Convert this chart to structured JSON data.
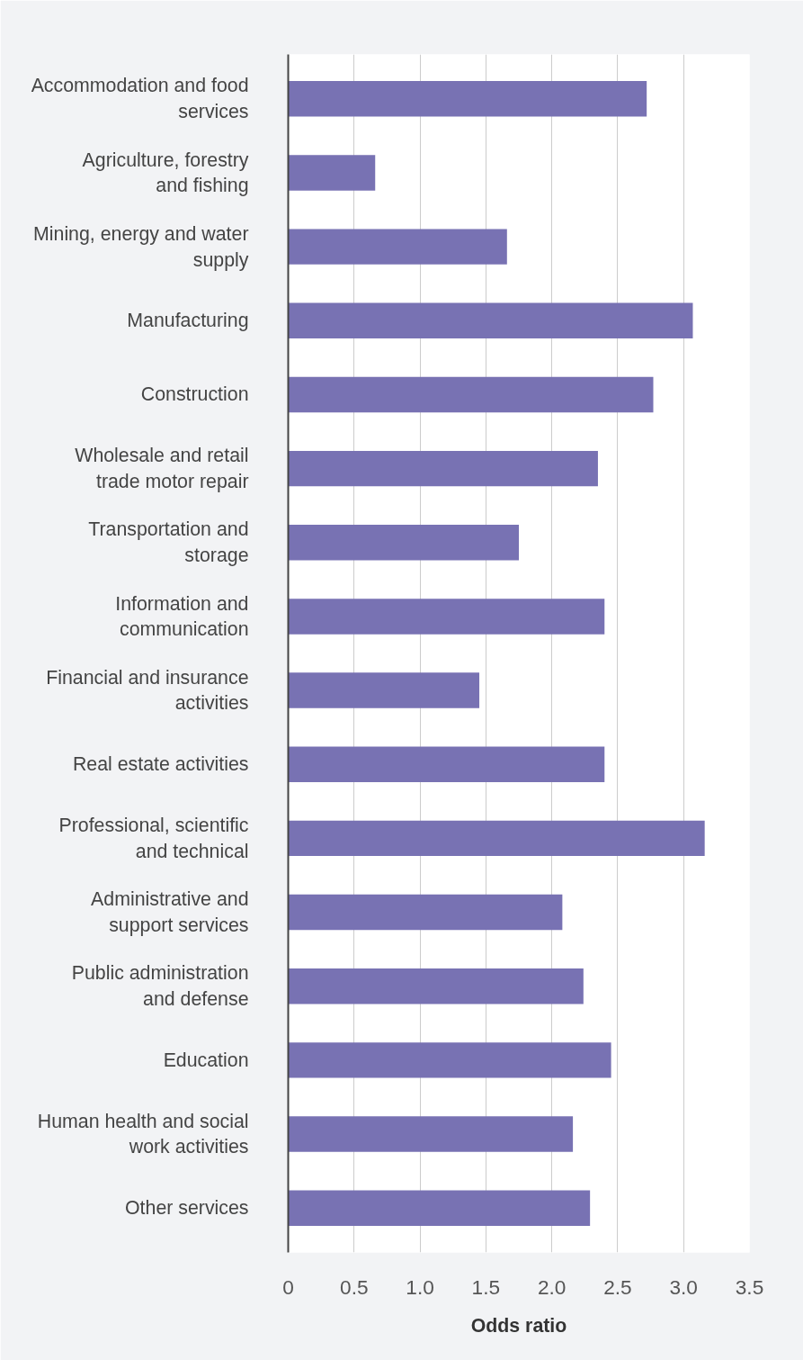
{
  "chart_data": {
    "type": "bar",
    "orientation": "horizontal",
    "xlabel": "Odds ratio",
    "categories": [
      "Accommodation and food services",
      "Agriculture, forestry and fishing",
      "Mining, energy and water supply",
      "Manufacturing",
      "Construction",
      "Wholesale and retail trade motor repair",
      "Transportation and storage",
      "Information and communication",
      "Financial and insurance activities",
      "Real estate activities",
      "Professional, scientific and technical",
      "Administrative and support services",
      "Public administration and defense",
      "Education",
      "Human health and social work activities",
      "Other services"
    ],
    "values": [
      2.72,
      0.66,
      1.66,
      3.07,
      2.77,
      2.35,
      1.75,
      2.4,
      1.45,
      2.4,
      3.16,
      2.08,
      2.24,
      2.45,
      2.16,
      2.29
    ],
    "color": "#7872b3",
    "xlim": [
      0,
      3.5
    ],
    "xticks": [
      0,
      0.5,
      {
        "value": 1,
        "label": "1.0"
      },
      1.5,
      {
        "value": 2,
        "label": "2.0"
      },
      2.5,
      {
        "value": 3,
        "label": "3.0"
      },
      3.5
    ],
    "grid": "x"
  }
}
